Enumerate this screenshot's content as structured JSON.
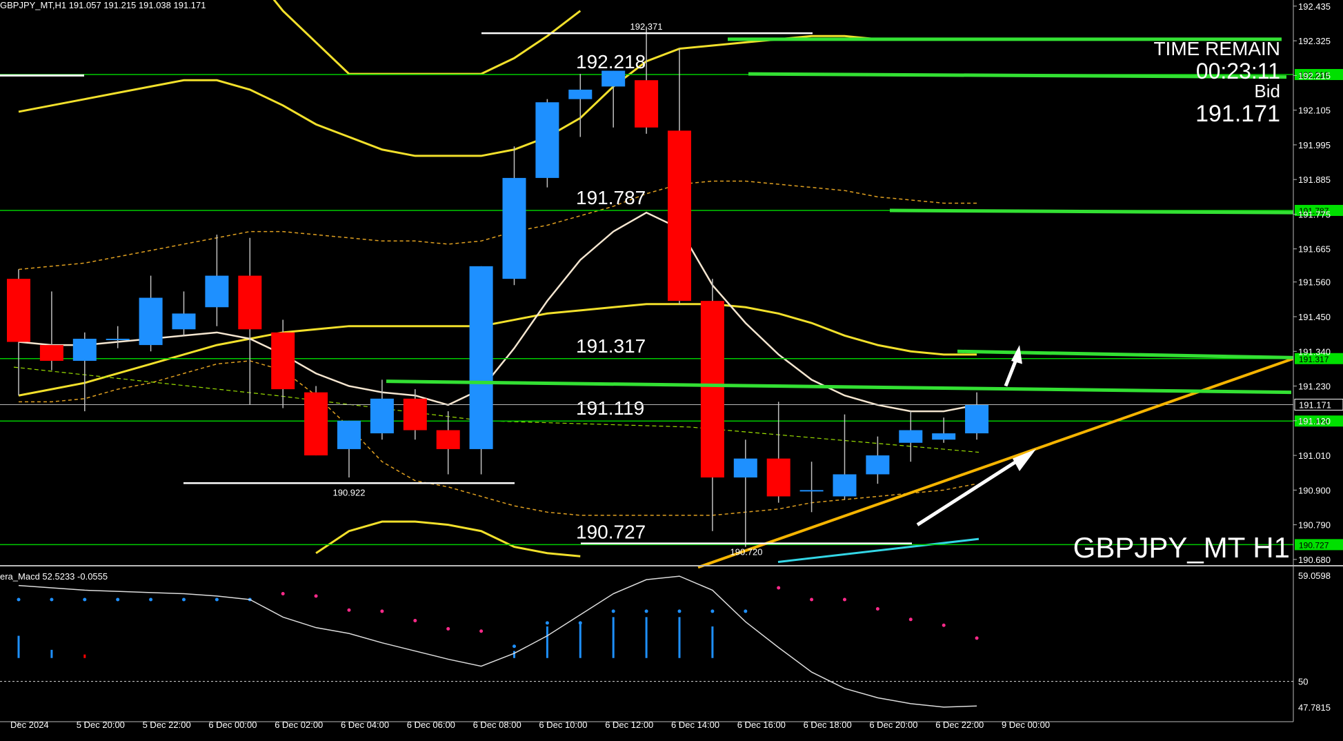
{
  "header": {
    "symbol_line": "GBPJPY_MT,H1  191.057 191.215 191.038 191.171"
  },
  "overlay": {
    "time_remain_label": "TIME REMAIN",
    "time_remain_value": "00:23:11",
    "bid_label": "Bid",
    "bid_value": "191.171",
    "symbol_watermark": "GBPJPY_MT H1"
  },
  "macd_header": "era_Macd 52.5233  -0.0555",
  "colors": {
    "bull": "#1e90ff",
    "bear": "#ff0000",
    "level_line": "#00cc00",
    "level_tag": "#00e000",
    "bands": "#f2e02b",
    "trend": "#f5b400",
    "ma": "#f5e6d0",
    "cyan": "#33d6e6",
    "bg": "#000000"
  },
  "chart_data": [
    {
      "type": "candlestick",
      "ylim": [
        190.66,
        192.45
      ],
      "price_ticks": [
        "192.435",
        "192.325",
        "192.215",
        "192.105",
        "191.995",
        "191.885",
        "191.775",
        "191.665",
        "191.560",
        "191.450",
        "191.340",
        "191.230",
        "191.120",
        "191.010",
        "190.900",
        "190.790",
        "190.680"
      ],
      "time_labels": [
        "Dec 2024",
        "5 Dec 20:00",
        "5 Dec 22:00",
        "6 Dec 00:00",
        "6 Dec 02:00",
        "6 Dec 04:00",
        "6 Dec 06:00",
        "6 Dec 08:00",
        "6 Dec 10:00",
        "6 Dec 12:00",
        "6 Dec 14:00",
        "6 Dec 16:00",
        "6 Dec 18:00",
        "6 Dec 20:00",
        "6 Dec 22:00",
        "9 Dec 00:00"
      ],
      "candles": [
        {
          "o": 191.57,
          "h": 191.6,
          "l": 191.2,
          "c": 191.37
        },
        {
          "o": 191.36,
          "h": 191.53,
          "l": 191.28,
          "c": 191.31
        },
        {
          "o": 191.31,
          "h": 191.4,
          "l": 191.15,
          "c": 191.38
        },
        {
          "o": 191.38,
          "h": 191.42,
          "l": 191.35,
          "c": 191.38
        },
        {
          "o": 191.36,
          "h": 191.58,
          "l": 191.34,
          "c": 191.51
        },
        {
          "o": 191.41,
          "h": 191.53,
          "l": 191.39,
          "c": 191.46
        },
        {
          "o": 191.48,
          "h": 191.71,
          "l": 191.42,
          "c": 191.58
        },
        {
          "o": 191.58,
          "h": 191.7,
          "l": 191.17,
          "c": 191.41
        },
        {
          "o": 191.4,
          "h": 191.44,
          "l": 191.16,
          "c": 191.22
        },
        {
          "o": 191.21,
          "h": 191.23,
          "l": 191.01,
          "c": 191.01
        },
        {
          "o": 191.03,
          "h": 191.12,
          "l": 190.94,
          "c": 191.12
        },
        {
          "o": 191.08,
          "h": 191.25,
          "l": 191.06,
          "c": 191.19
        },
        {
          "o": 191.19,
          "h": 191.22,
          "l": 191.06,
          "c": 191.09
        },
        {
          "o": 191.09,
          "h": 191.15,
          "l": 190.95,
          "c": 191.03
        },
        {
          "o": 191.03,
          "h": 191.61,
          "l": 190.95,
          "c": 191.61
        },
        {
          "o": 191.57,
          "h": 191.99,
          "l": 191.55,
          "c": 191.89
        },
        {
          "o": 191.89,
          "h": 192.14,
          "l": 191.86,
          "c": 192.13
        },
        {
          "o": 192.14,
          "h": 192.22,
          "l": 192.02,
          "c": 192.17
        },
        {
          "o": 192.18,
          "h": 192.23,
          "l": 192.05,
          "c": 192.23
        },
        {
          "o": 192.2,
          "h": 192.37,
          "l": 192.03,
          "c": 192.05
        },
        {
          "o": 192.04,
          "h": 192.3,
          "l": 191.49,
          "c": 191.5
        },
        {
          "o": 191.5,
          "h": 191.57,
          "l": 190.77,
          "c": 190.94
        },
        {
          "o": 190.94,
          "h": 191.06,
          "l": 190.72,
          "c": 191.0
        },
        {
          "o": 191.0,
          "h": 191.18,
          "l": 190.86,
          "c": 190.88
        },
        {
          "o": 190.9,
          "h": 190.99,
          "l": 190.83,
          "c": 190.9
        },
        {
          "o": 190.88,
          "h": 191.14,
          "l": 190.87,
          "c": 190.95
        },
        {
          "o": 190.95,
          "h": 191.07,
          "l": 190.92,
          "c": 191.01
        },
        {
          "o": 191.05,
          "h": 191.15,
          "l": 190.99,
          "c": 191.09
        },
        {
          "o": 191.06,
          "h": 191.13,
          "l": 191.05,
          "c": 191.08
        },
        {
          "o": 191.08,
          "h": 191.21,
          "l": 191.06,
          "c": 191.17
        }
      ],
      "levels": [
        {
          "price": 192.218,
          "label": "192.218",
          "tag": "192.218"
        },
        {
          "price": 191.787,
          "label": "191.787",
          "tag": "191.787"
        },
        {
          "price": 191.317,
          "label": "191.317",
          "tag": "191.317"
        },
        {
          "price": 191.119,
          "label": "191.119",
          "tag": "191.119"
        },
        {
          "price": 190.727,
          "label": "190.727",
          "tag": "190.727"
        }
      ],
      "bid_tag": "191.171",
      "swing_markers": [
        {
          "price": 192.371,
          "label": "192.371"
        },
        {
          "price": 190.922,
          "label": "190.922"
        },
        {
          "price": 190.72,
          "label": "190.720"
        }
      ]
    },
    {
      "type": "macd",
      "ylim": [
        47.5,
        59.3
      ],
      "ticks": [
        "59.0598",
        "50",
        "47.7815"
      ],
      "values": [
        58.2,
        58.0,
        57.8,
        57.7,
        57.6,
        57.5,
        57.3,
        57.0,
        55.5,
        54.6,
        54.1,
        53.3,
        52.6,
        51.9,
        51.3,
        52.4,
        53.9,
        55.7,
        57.5,
        58.7,
        59.0,
        57.8,
        55.1,
        52.9,
        50.8,
        49.4,
        48.6,
        48.1,
        47.8,
        47.9
      ],
      "signal_dots": [
        {
          "v": 57.0,
          "c": "#1e90ff"
        },
        {
          "v": 57.0,
          "c": "#1e90ff"
        },
        {
          "v": 57.0,
          "c": "#1e90ff"
        },
        {
          "v": 57.0,
          "c": "#1e90ff"
        },
        {
          "v": 57.0,
          "c": "#1e90ff"
        },
        {
          "v": 57.0,
          "c": "#1e90ff"
        },
        {
          "v": 57.0,
          "c": "#1e90ff"
        },
        {
          "v": 57.0,
          "c": "#1e90ff"
        },
        {
          "v": 57.5,
          "c": "#ff2a8a"
        },
        {
          "v": 57.3,
          "c": "#ff2a8a"
        },
        {
          "v": 56.1,
          "c": "#ff2a8a"
        },
        {
          "v": 56.0,
          "c": "#ff2a8a"
        },
        {
          "v": 55.2,
          "c": "#ff2a8a"
        },
        {
          "v": 54.5,
          "c": "#ff2a8a"
        },
        {
          "v": 54.3,
          "c": "#ff2a8a"
        },
        {
          "v": 53.0,
          "c": "#1e90ff"
        },
        {
          "v": 55.0,
          "c": "#1e90ff"
        },
        {
          "v": 55.0,
          "c": "#1e90ff"
        },
        {
          "v": 56.0,
          "c": "#1e90ff"
        },
        {
          "v": 56.0,
          "c": "#1e90ff"
        },
        {
          "v": 56.0,
          "c": "#1e90ff"
        },
        {
          "v": 56.0,
          "c": "#1e90ff"
        },
        {
          "v": 56.0,
          "c": "#1e90ff"
        },
        {
          "v": 58.0,
          "c": "#ff2a8a"
        },
        {
          "v": 57.0,
          "c": "#ff2a8a"
        },
        {
          "v": 57.0,
          "c": "#ff2a8a"
        },
        {
          "v": 56.2,
          "c": "#ff2a8a"
        },
        {
          "v": 55.3,
          "c": "#ff2a8a"
        },
        {
          "v": 54.8,
          "c": "#ff2a8a"
        },
        {
          "v": 53.7,
          "c": "#ff2a8a"
        }
      ],
      "histogram": [
        {
          "v": 53.9,
          "c": "#1e90ff"
        },
        {
          "v": 52.7,
          "c": "#1e90ff"
        },
        {
          "v": 52.3,
          "c": "#ff0000"
        },
        {
          "v": 52.0,
          "c": "#ff0000"
        },
        {
          "v": 52.0,
          "c": "#ff0000"
        },
        {
          "v": 52.0,
          "c": "#ff0000"
        },
        {
          "v": 52.0,
          "c": "#ff0000"
        },
        {
          "v": 52.0,
          "c": "#ff0000"
        },
        {
          "v": 52.0,
          "c": "#ff0000"
        },
        {
          "v": 52.0,
          "c": "#ff0000"
        },
        {
          "v": 52.0,
          "c": "#ff0000"
        },
        {
          "v": 52.0,
          "c": "#ff0000"
        },
        {
          "v": 52.0,
          "c": "#ff0000"
        },
        {
          "v": 52.0,
          "c": "#ff0000"
        },
        {
          "v": 52.0,
          "c": "#ff0000"
        },
        {
          "v": 52.6,
          "c": "#1e90ff"
        },
        {
          "v": 54.7,
          "c": "#1e90ff"
        },
        {
          "v": 55.0,
          "c": "#1e90ff"
        },
        {
          "v": 55.5,
          "c": "#1e90ff"
        },
        {
          "v": 55.5,
          "c": "#1e90ff"
        },
        {
          "v": 55.5,
          "c": "#1e90ff"
        },
        {
          "v": 54.7,
          "c": "#1e90ff"
        },
        {
          "v": 52.0,
          "c": "#ff0000"
        },
        {
          "v": 52.0,
          "c": "#ff0000"
        },
        {
          "v": 52.0,
          "c": "#ff0000"
        },
        {
          "v": 52.0,
          "c": "#ff0000"
        },
        {
          "v": 52.0,
          "c": "#ff0000"
        },
        {
          "v": 52.0,
          "c": "#ff0000"
        },
        {
          "v": 52.0,
          "c": "#ff0000"
        },
        {
          "v": 52.0,
          "c": "#ff0000"
        }
      ]
    }
  ]
}
